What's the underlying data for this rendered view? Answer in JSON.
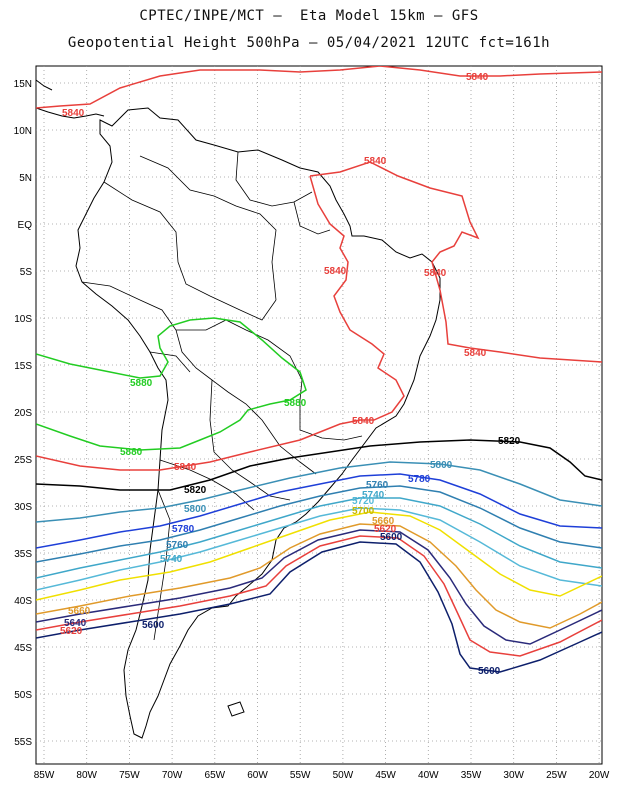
{
  "header": {
    "line1": "CPTEC/INPE/MCT –  Eta Model 15km – GFS",
    "line2": "Geopotential Height 500hPa – 05/04/2021 12UTC fct=161h"
  },
  "map": {
    "lon_labels": [
      "85W",
      "80W",
      "75W",
      "70W",
      "65W",
      "60W",
      "55W",
      "50W",
      "45W",
      "40W",
      "35W",
      "30W",
      "25W",
      "20W"
    ],
    "lat_labels": [
      "15N",
      "10N",
      "5N",
      "EQ",
      "5S",
      "10S",
      "15S",
      "20S",
      "25S",
      "30S",
      "35S",
      "40S",
      "45S",
      "50S",
      "55S"
    ],
    "contours": [
      {
        "level": "5840",
        "color": "#e8403c",
        "labels": [
          "5840",
          "5840",
          "5840",
          "5840",
          "5840",
          "5840",
          "5840",
          "5840"
        ]
      },
      {
        "level": "5880",
        "color": "#22cc22",
        "labels": [
          "5880",
          "5880",
          "5880"
        ]
      },
      {
        "level": "5820",
        "color": "#000000",
        "labels": [
          "5820",
          "5820"
        ]
      },
      {
        "level": "5800",
        "color": "#3a8fb5",
        "labels": [
          "5800",
          "5800"
        ]
      },
      {
        "level": "5780",
        "color": "#1e3fd8",
        "labels": [
          "5780",
          "5780"
        ]
      },
      {
        "level": "5760",
        "color": "#2f7fb0",
        "labels": [
          "5760",
          "5760"
        ]
      },
      {
        "level": "5740",
        "color": "#3fa7c9",
        "labels": [
          "5740",
          "5740"
        ]
      },
      {
        "level": "5720",
        "color": "#56b9d8",
        "labels": [
          "5720"
        ]
      },
      {
        "level": "5700",
        "color": "#f0e000",
        "labels": [
          "5700"
        ]
      },
      {
        "level": "5660",
        "color": "#e09a2a",
        "labels": [
          "5660",
          "5660"
        ]
      },
      {
        "level": "5640",
        "color": "#2a2a7a",
        "labels": [
          "5640"
        ]
      },
      {
        "level": "5620",
        "color": "#e8403c",
        "labels": [
          "5620",
          "5620"
        ]
      },
      {
        "level": "5600",
        "color": "#0d1f6b",
        "labels": [
          "5600",
          "5600",
          "5600"
        ]
      }
    ]
  }
}
